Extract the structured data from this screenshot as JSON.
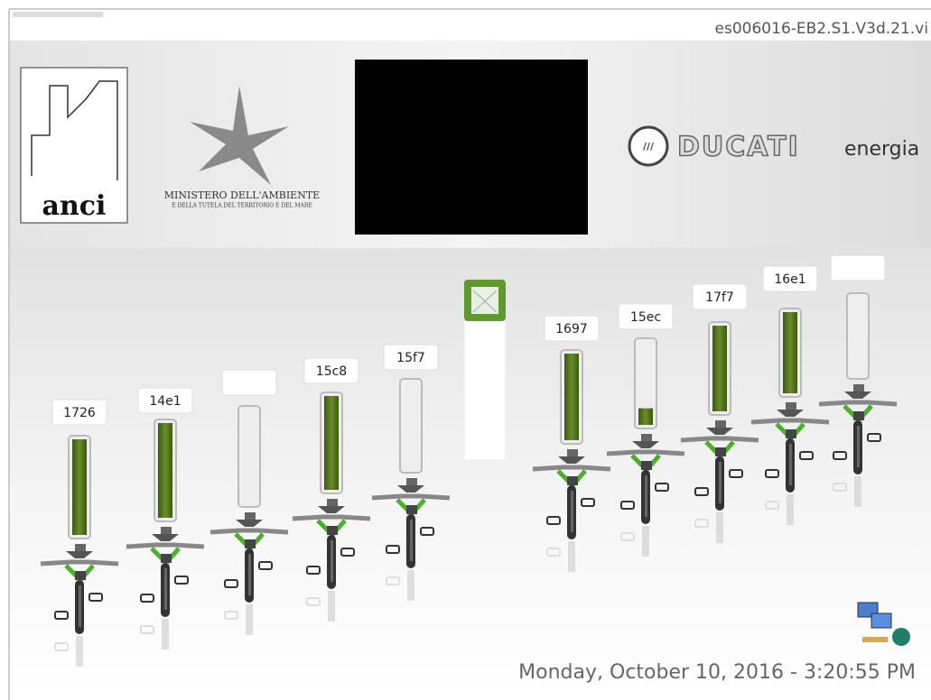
{
  "window": {
    "title": "es006016-EB2.S1.V3d.21.vi"
  },
  "header": {
    "anci": "anci",
    "ministry": "MINISTERO DELL'AMBIENTE",
    "ministry_sub": "E DELLA TUTELA DEL TERRITORIO E DEL MARE",
    "brand": "DUCATI",
    "brand_sub": "energia"
  },
  "slots": [
    {
      "label": "1726",
      "level": 100
    },
    {
      "label": "14e1",
      "level": 100
    },
    {
      "level": 0
    },
    {
      "label": "15c8",
      "level": 100
    },
    {
      "label": "15f7",
      "level": 0
    },
    {
      "label": "1697",
      "level": 100
    },
    {
      "label": "15ec",
      "level": 20
    },
    {
      "label": "17f7",
      "level": 100
    },
    {
      "label": "16e1",
      "level": 100
    },
    {
      "level": 0
    }
  ],
  "footer": {
    "datetime": "Monday, October 10, 2016  -  3:20:55 PM"
  }
}
